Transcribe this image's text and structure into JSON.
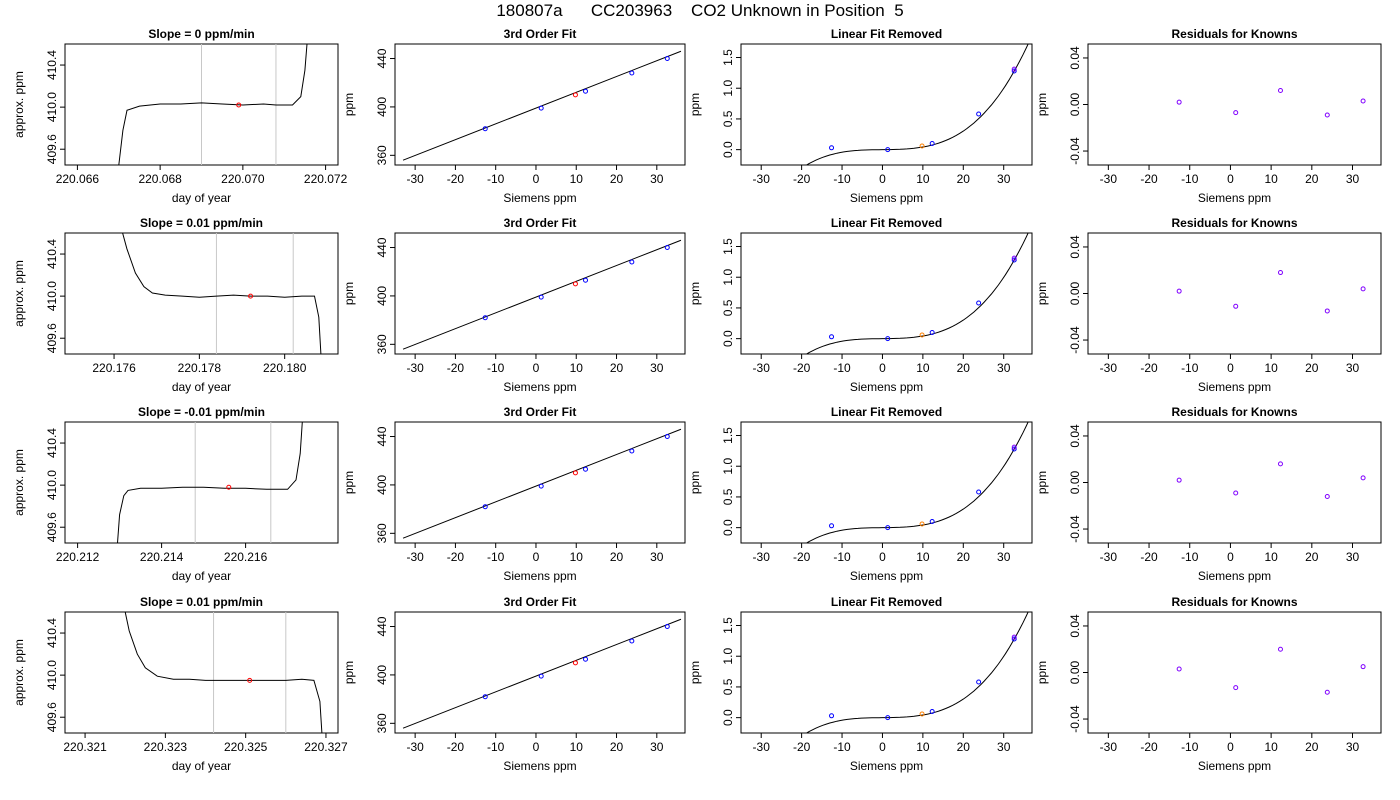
{
  "page_title": "180807a      CC203963    CO2 Unknown in Position  5",
  "colors": {
    "axis": "#000000",
    "trace_line": "#000000",
    "window_line": "#c8c8c8",
    "known_points": "#0000ff",
    "unknown_point": "#ff0000",
    "unknown_point_linear": "#ff8000",
    "residual_points": "#8000ff",
    "fit_line": "#000000"
  },
  "chart_data": [
    {
      "type": "line",
      "title": "Slope =  0  ppm/min",
      "xlabel": "day of year",
      "ylabel": "approx. ppm",
      "xlim": [
        220.0657,
        220.0723
      ],
      "ylim": [
        409.45,
        410.6
      ],
      "xticks": [
        "220.066",
        "220.068",
        "220.070",
        "220.072"
      ],
      "xtick_values": [
        220.066,
        220.068,
        220.07,
        220.072
      ],
      "yticks": [
        "409.6",
        "410.0",
        "410.4"
      ],
      "ytick_values": [
        409.6,
        410.0,
        410.4
      ],
      "grid": false,
      "window_lines": [
        220.069,
        220.0708
      ],
      "series": [
        {
          "x": [
            220.067,
            220.0671,
            220.0672,
            220.0675,
            220.068,
            220.0685,
            220.069,
            220.0695,
            220.07,
            220.0705,
            220.0708,
            220.0712,
            220.0714,
            220.0715,
            220.07155
          ],
          "y": [
            409.45,
            409.78,
            409.97,
            410.01,
            410.03,
            410.03,
            410.04,
            410.03,
            410.02,
            410.03,
            410.02,
            410.02,
            410.1,
            410.35,
            410.6
          ]
        }
      ],
      "markers": [
        {
          "x": 220.0699,
          "y": 410.02
        }
      ]
    },
    {
      "type": "line",
      "title": "3rd Order Fit",
      "xlabel": "Siemens ppm",
      "ylabel": "ppm",
      "xlim": [
        -35,
        37
      ],
      "ylim": [
        352,
        452
      ],
      "xticks": [
        "-30",
        "-20",
        "-10",
        "0",
        "10",
        "20",
        "30"
      ],
      "xtick_values": [
        -30,
        -20,
        -10,
        0,
        10,
        20,
        30
      ],
      "yticks": [
        "360",
        "400",
        "440"
      ],
      "ytick_values": [
        360,
        400,
        440
      ],
      "grid": false,
      "fit": "linear",
      "fit_line": {
        "x": [
          -33,
          36
        ],
        "y": [
          356,
          446
        ]
      },
      "known_points": {
        "x": [
          -12.6,
          1.3,
          12.3,
          23.8,
          32.6
        ],
        "y": [
          382,
          399,
          413,
          428,
          440
        ]
      },
      "unknown_point": {
        "x": 9.8,
        "y": 410
      }
    },
    {
      "type": "line",
      "title": "Linear Fit Removed",
      "xlabel": "Siemens ppm",
      "ylabel": "ppm",
      "xlim": [
        -35,
        37
      ],
      "ylim": [
        -0.25,
        1.72
      ],
      "xticks": [
        "-30",
        "-20",
        "-10",
        "0",
        "10",
        "20",
        "30"
      ],
      "xtick_values": [
        -30,
        -20,
        -10,
        0,
        10,
        20,
        30
      ],
      "yticks": [
        "0.0",
        "0.5",
        "1.0",
        "1.5"
      ],
      "ytick_values": [
        0.0,
        0.5,
        1.0,
        1.5
      ],
      "grid": false,
      "fit": "cubic",
      "fit_curve": {
        "x0": -33,
        "x1": 36.5,
        "coeffs": [
          0.0,
          0.0006,
          3e-06,
          3.62e-05
        ]
      },
      "known_points": {
        "x": [
          -12.6,
          1.3,
          12.3,
          23.8,
          32.6
        ],
        "y": [
          0.03,
          0.0,
          0.1,
          0.58,
          1.28
        ]
      },
      "known_points_alt": {
        "x": [
          32.6
        ],
        "y": [
          1.31
        ]
      },
      "unknown_point": {
        "x": 9.8,
        "y": 0.06
      }
    },
    {
      "type": "scatter",
      "title": "Residuals for Knowns",
      "xlabel": "Siemens ppm",
      "ylabel": "ppm",
      "xlim": [
        -35,
        37
      ],
      "ylim": [
        -0.052,
        0.052
      ],
      "xticks": [
        "-30",
        "-20",
        "-10",
        "0",
        "10",
        "20",
        "30"
      ],
      "xtick_values": [
        -30,
        -20,
        -10,
        0,
        10,
        20,
        30
      ],
      "yticks": [
        "-0.04",
        "0.00",
        "0.04"
      ],
      "ytick_values": [
        -0.04,
        0.0,
        0.04
      ],
      "grid": false,
      "points": {
        "x": [
          -12.6,
          1.3,
          12.3,
          23.8,
          32.6
        ],
        "y": [
          0.002,
          -0.007,
          0.012,
          -0.009,
          0.003
        ]
      }
    },
    {
      "type": "line",
      "title": "Slope =  0.01  ppm/min",
      "xlabel": "day of year",
      "ylabel": "approx. ppm",
      "xlim": [
        220.17485,
        220.18125
      ],
      "ylim": [
        409.45,
        410.6
      ],
      "xticks": [
        "220.176",
        "220.178",
        "220.180"
      ],
      "xtick_values": [
        220.176,
        220.178,
        220.18
      ],
      "yticks": [
        "409.6",
        "410.0",
        "410.4"
      ],
      "ytick_values": [
        409.6,
        410.0,
        410.4
      ],
      "grid": false,
      "window_lines": [
        220.1784,
        220.1802
      ],
      "series": [
        {
          "x": [
            220.1762,
            220.1763,
            220.1765,
            220.1767,
            220.1769,
            220.1772,
            220.1776,
            220.178,
            220.1784,
            220.1788,
            220.1792,
            220.1796,
            220.18,
            220.1804,
            220.1807,
            220.1808,
            220.18085
          ],
          "y": [
            410.6,
            410.45,
            410.22,
            410.09,
            410.03,
            410.01,
            410.0,
            409.99,
            410.0,
            410.01,
            410.0,
            410.0,
            409.99,
            410.0,
            410.0,
            409.8,
            409.45
          ]
        }
      ],
      "markers": [
        {
          "x": 220.1792,
          "y": 410.0
        }
      ]
    },
    {
      "type": "line",
      "title": "3rd Order Fit",
      "xlabel": "Siemens ppm",
      "ylabel": "ppm",
      "xlim": [
        -35,
        37
      ],
      "ylim": [
        352,
        452
      ],
      "xticks": [
        "-30",
        "-20",
        "-10",
        "0",
        "10",
        "20",
        "30"
      ],
      "xtick_values": [
        -30,
        -20,
        -10,
        0,
        10,
        20,
        30
      ],
      "yticks": [
        "360",
        "400",
        "440"
      ],
      "ytick_values": [
        360,
        400,
        440
      ],
      "grid": false,
      "fit": "linear",
      "fit_line": {
        "x": [
          -33,
          36
        ],
        "y": [
          356,
          446
        ]
      },
      "known_points": {
        "x": [
          -12.6,
          1.3,
          12.3,
          23.8,
          32.6
        ],
        "y": [
          382,
          399,
          413,
          428,
          440
        ]
      },
      "unknown_point": {
        "x": 9.8,
        "y": 410
      }
    },
    {
      "type": "line",
      "title": "Linear Fit Removed",
      "xlabel": "Siemens ppm",
      "ylabel": "ppm",
      "xlim": [
        -35,
        37
      ],
      "ylim": [
        -0.25,
        1.72
      ],
      "xticks": [
        "-30",
        "-20",
        "-10",
        "0",
        "10",
        "20",
        "30"
      ],
      "xtick_values": [
        -30,
        -20,
        -10,
        0,
        10,
        20,
        30
      ],
      "yticks": [
        "0.0",
        "0.5",
        "1.0",
        "1.5"
      ],
      "ytick_values": [
        0.0,
        0.5,
        1.0,
        1.5
      ],
      "grid": false,
      "fit": "cubic",
      "fit_curve": {
        "x0": -33,
        "x1": 36.5,
        "coeffs": [
          0.0,
          0.0006,
          3e-06,
          3.62e-05
        ]
      },
      "known_points": {
        "x": [
          -12.6,
          1.3,
          12.3,
          23.8,
          32.6
        ],
        "y": [
          0.03,
          0.0,
          0.1,
          0.58,
          1.28
        ]
      },
      "known_points_alt": {
        "x": [
          32.6
        ],
        "y": [
          1.31
        ]
      },
      "unknown_point": {
        "x": 9.8,
        "y": 0.06
      }
    },
    {
      "type": "scatter",
      "title": "Residuals for Knowns",
      "xlabel": "Siemens ppm",
      "ylabel": "ppm",
      "xlim": [
        -35,
        37
      ],
      "ylim": [
        -0.052,
        0.052
      ],
      "xticks": [
        "-30",
        "-20",
        "-10",
        "0",
        "10",
        "20",
        "30"
      ],
      "xtick_values": [
        -30,
        -20,
        -10,
        0,
        10,
        20,
        30
      ],
      "yticks": [
        "-0.04",
        "0.00",
        "0.04"
      ],
      "ytick_values": [
        -0.04,
        0.0,
        0.04
      ],
      "grid": false,
      "points": {
        "x": [
          -12.6,
          1.3,
          12.3,
          23.8,
          32.6
        ],
        "y": [
          0.002,
          -0.011,
          0.018,
          -0.015,
          0.004
        ]
      }
    },
    {
      "type": "line",
      "title": "Slope =  -0.01  ppm/min",
      "xlabel": "day of year",
      "ylabel": "approx. ppm",
      "xlim": [
        220.2117,
        220.2182
      ],
      "ylim": [
        409.45,
        410.6
      ],
      "xticks": [
        "220.212",
        "220.214",
        "220.216"
      ],
      "xtick_values": [
        220.212,
        220.214,
        220.216
      ],
      "yticks": [
        "409.6",
        "410.0",
        "410.4"
      ],
      "ytick_values": [
        409.6,
        410.0,
        410.4
      ],
      "grid": false,
      "window_lines": [
        220.2148,
        220.2166
      ],
      "series": [
        {
          "x": [
            220.21295,
            220.213,
            220.2131,
            220.2132,
            220.2135,
            220.214,
            220.2145,
            220.215,
            220.2155,
            220.216,
            220.2165,
            220.217,
            220.2172,
            220.2173,
            220.21735
          ],
          "y": [
            409.45,
            409.72,
            409.9,
            409.95,
            409.97,
            409.97,
            409.98,
            409.98,
            409.97,
            409.97,
            409.96,
            409.96,
            410.05,
            410.3,
            410.6
          ]
        }
      ],
      "markers": [
        {
          "x": 220.2156,
          "y": 409.98
        }
      ]
    },
    {
      "type": "line",
      "title": "3rd Order Fit",
      "xlabel": "Siemens ppm",
      "ylabel": "ppm",
      "xlim": [
        -35,
        37
      ],
      "ylim": [
        352,
        452
      ],
      "xticks": [
        "-30",
        "-20",
        "-10",
        "0",
        "10",
        "20",
        "30"
      ],
      "xtick_values": [
        -30,
        -20,
        -10,
        0,
        10,
        20,
        30
      ],
      "yticks": [
        "360",
        "400",
        "440"
      ],
      "ytick_values": [
        360,
        400,
        440
      ],
      "grid": false,
      "fit": "linear",
      "fit_line": {
        "x": [
          -33,
          36
        ],
        "y": [
          356,
          446
        ]
      },
      "known_points": {
        "x": [
          -12.6,
          1.3,
          12.3,
          23.8,
          32.6
        ],
        "y": [
          382,
          399,
          413,
          428,
          440
        ]
      },
      "unknown_point": {
        "x": 9.8,
        "y": 410
      }
    },
    {
      "type": "line",
      "title": "Linear Fit Removed",
      "xlabel": "Siemens ppm",
      "ylabel": "ppm",
      "xlim": [
        -35,
        37
      ],
      "ylim": [
        -0.25,
        1.72
      ],
      "xticks": [
        "-30",
        "-20",
        "-10",
        "0",
        "10",
        "20",
        "30"
      ],
      "xtick_values": [
        -30,
        -20,
        -10,
        0,
        10,
        20,
        30
      ],
      "yticks": [
        "0.0",
        "0.5",
        "1.0",
        "1.5"
      ],
      "ytick_values": [
        0.0,
        0.5,
        1.0,
        1.5
      ],
      "grid": false,
      "fit": "cubic",
      "fit_curve": {
        "x0": -33,
        "x1": 36.5,
        "coeffs": [
          0.0,
          0.0006,
          3e-06,
          3.62e-05
        ]
      },
      "known_points": {
        "x": [
          -12.6,
          1.3,
          12.3,
          23.8,
          32.6
        ],
        "y": [
          0.03,
          0.0,
          0.1,
          0.58,
          1.28
        ]
      },
      "known_points_alt": {
        "x": [
          32.6
        ],
        "y": [
          1.31
        ]
      },
      "unknown_point": {
        "x": 9.8,
        "y": 0.06
      }
    },
    {
      "type": "scatter",
      "title": "Residuals for Knowns",
      "xlabel": "Siemens ppm",
      "ylabel": "ppm",
      "xlim": [
        -35,
        37
      ],
      "ylim": [
        -0.052,
        0.052
      ],
      "xticks": [
        "-30",
        "-20",
        "-10",
        "0",
        "10",
        "20",
        "30"
      ],
      "xtick_values": [
        -30,
        -20,
        -10,
        0,
        10,
        20,
        30
      ],
      "yticks": [
        "-0.04",
        "0.00",
        "0.04"
      ],
      "ytick_values": [
        -0.04,
        0.0,
        0.04
      ],
      "grid": false,
      "points": {
        "x": [
          -12.6,
          1.3,
          12.3,
          23.8,
          32.6
        ],
        "y": [
          0.002,
          -0.009,
          0.016,
          -0.012,
          0.004
        ]
      }
    },
    {
      "type": "line",
      "title": "Slope =  0.01  ppm/min",
      "xlabel": "day of year",
      "ylabel": "approx. ppm",
      "xlim": [
        220.3205,
        220.3273
      ],
      "ylim": [
        409.45,
        410.6
      ],
      "xticks": [
        "220.321",
        "220.323",
        "220.325",
        "220.327"
      ],
      "xtick_values": [
        220.321,
        220.323,
        220.325,
        220.327
      ],
      "yticks": [
        "409.6",
        "410.0",
        "410.4"
      ],
      "ytick_values": [
        409.6,
        410.0,
        410.4
      ],
      "grid": false,
      "window_lines": [
        220.3242,
        220.326
      ],
      "series": [
        {
          "x": [
            220.322,
            220.3221,
            220.3223,
            220.3225,
            220.3228,
            220.3232,
            220.3236,
            220.324,
            220.3244,
            220.3248,
            220.3252,
            220.3256,
            220.326,
            220.3264,
            220.3267,
            220.32685,
            220.3269
          ],
          "y": [
            410.6,
            410.42,
            410.2,
            410.07,
            409.99,
            409.96,
            409.96,
            409.95,
            409.95,
            409.95,
            409.95,
            409.95,
            409.95,
            409.96,
            409.95,
            409.75,
            409.45
          ]
        }
      ],
      "markers": [
        {
          "x": 220.3251,
          "y": 409.95
        }
      ]
    },
    {
      "type": "line",
      "title": "3rd Order Fit",
      "xlabel": "Siemens ppm",
      "ylabel": "ppm",
      "xlim": [
        -35,
        37
      ],
      "ylim": [
        352,
        452
      ],
      "xticks": [
        "-30",
        "-20",
        "-10",
        "0",
        "10",
        "20",
        "30"
      ],
      "xtick_values": [
        -30,
        -20,
        -10,
        0,
        10,
        20,
        30
      ],
      "yticks": [
        "360",
        "400",
        "440"
      ],
      "ytick_values": [
        360,
        400,
        440
      ],
      "grid": false,
      "fit": "linear",
      "fit_line": {
        "x": [
          -33,
          36
        ],
        "y": [
          356,
          446
        ]
      },
      "known_points": {
        "x": [
          -12.6,
          1.3,
          12.3,
          23.8,
          32.6
        ],
        "y": [
          382,
          399,
          413,
          428,
          440
        ]
      },
      "unknown_point": {
        "x": 9.8,
        "y": 410
      }
    },
    {
      "type": "line",
      "title": "Linear Fit Removed",
      "xlabel": "Siemens ppm",
      "ylabel": "ppm",
      "xlim": [
        -35,
        37
      ],
      "ylim": [
        -0.25,
        1.72
      ],
      "xticks": [
        "-30",
        "-20",
        "-10",
        "0",
        "10",
        "20",
        "30"
      ],
      "xtick_values": [
        -30,
        -20,
        -10,
        0,
        10,
        20,
        30
      ],
      "yticks": [
        "0.0",
        "0.5",
        "1.0",
        "1.5"
      ],
      "ytick_values": [
        0.0,
        0.5,
        1.0,
        1.5
      ],
      "grid": false,
      "fit": "cubic",
      "fit_curve": {
        "x0": -33,
        "x1": 36.5,
        "coeffs": [
          0.0,
          0.0006,
          3e-06,
          3.62e-05
        ]
      },
      "known_points": {
        "x": [
          -12.6,
          1.3,
          12.3,
          23.8,
          32.6
        ],
        "y": [
          0.03,
          0.0,
          0.1,
          0.58,
          1.28
        ]
      },
      "known_points_alt": {
        "x": [
          32.6
        ],
        "y": [
          1.31
        ]
      },
      "unknown_point": {
        "x": 9.8,
        "y": 0.06
      }
    },
    {
      "type": "scatter",
      "title": "Residuals for Knowns",
      "xlabel": "Siemens ppm",
      "ylabel": "ppm",
      "xlim": [
        -35,
        37
      ],
      "ylim": [
        -0.052,
        0.052
      ],
      "xticks": [
        "-30",
        "-20",
        "-10",
        "0",
        "10",
        "20",
        "30"
      ],
      "xtick_values": [
        -30,
        -20,
        -10,
        0,
        10,
        20,
        30
      ],
      "yticks": [
        "-0.04",
        "0.00",
        "0.04"
      ],
      "ytick_values": [
        -0.04,
        0.0,
        0.04
      ],
      "grid": false,
      "points": {
        "x": [
          -12.6,
          1.3,
          12.3,
          23.8,
          32.6
        ],
        "y": [
          0.003,
          -0.013,
          0.02,
          -0.017,
          0.005
        ]
      }
    }
  ]
}
